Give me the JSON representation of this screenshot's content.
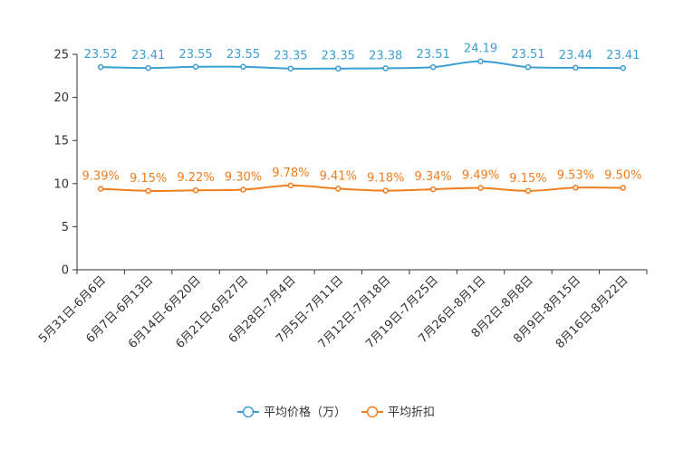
{
  "chart_data": {
    "type": "line",
    "title": "",
    "xlabel": "",
    "ylabel": "",
    "ylim": [
      0,
      25
    ],
    "yticks": [
      0,
      5,
      10,
      15,
      20,
      25
    ],
    "grid": false,
    "legend_position": "bottom-center",
    "categories": [
      "5月31日-6月6日",
      "6月7日-6月13日",
      "6月14日-6月20日",
      "6月21日-6月27日",
      "6月28日-7月4日",
      "7月5日-7月11日",
      "7月12日-7月18日",
      "7月19日-7月25日",
      "7月26日-8月1日",
      "8月2日-8月8日",
      "8月9日-8月15日",
      "8月16日-8月22日"
    ],
    "series": [
      {
        "name": "平均价格（万）",
        "color": "#3c9fd0",
        "values": [
          23.52,
          23.41,
          23.55,
          23.55,
          23.35,
          23.35,
          23.38,
          23.51,
          24.19,
          23.51,
          23.44,
          23.41
        ],
        "labels": [
          "23.52",
          "23.41",
          "23.55",
          "23.55",
          "23.35",
          "23.35",
          "23.38",
          "23.51",
          "24.19",
          "23.51",
          "23.44",
          "23.41"
        ]
      },
      {
        "name": "平均折扣",
        "color": "#f07d1e",
        "values": [
          9.39,
          9.15,
          9.22,
          9.3,
          9.78,
          9.41,
          9.18,
          9.34,
          9.49,
          9.15,
          9.53,
          9.5
        ],
        "labels": [
          "9.39%",
          "9.15%",
          "9.22%",
          "9.30%",
          "9.78%",
          "9.41%",
          "9.18%",
          "9.34%",
          "9.49%",
          "9.15%",
          "9.53%",
          "9.50%"
        ]
      }
    ]
  }
}
